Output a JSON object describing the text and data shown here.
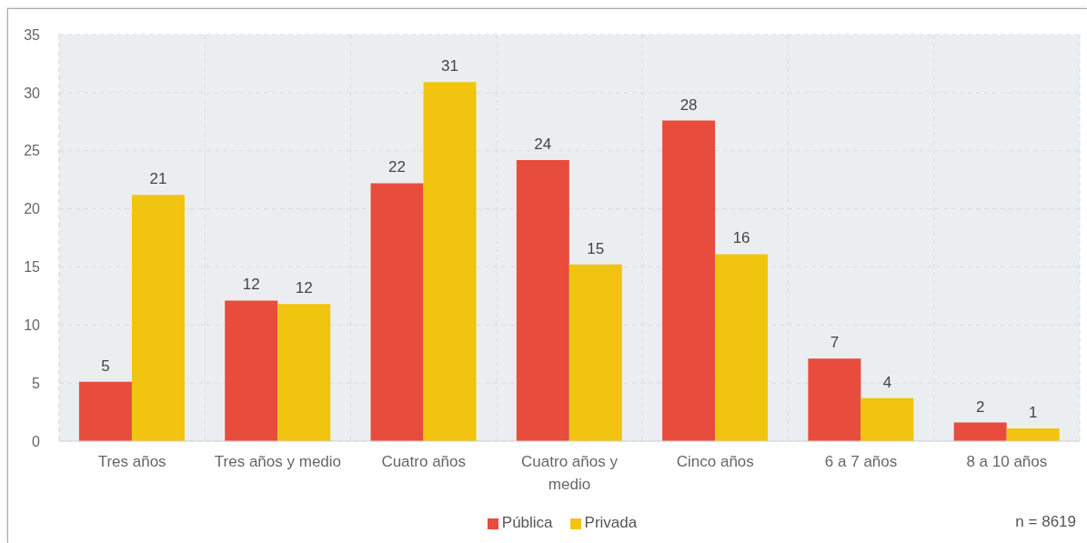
{
  "chart_data": {
    "type": "bar",
    "categories": [
      "Tres años",
      "Tres años y medio",
      "Cuatro años",
      "Cuatro años y medio",
      "Cinco años",
      "6 a 7 años",
      "8 a 10 años"
    ],
    "series": [
      {
        "name": "Pública",
        "color": "#e84c3d",
        "values": [
          5.1,
          12.1,
          22.2,
          24.2,
          27.6,
          7.1,
          1.6
        ],
        "value_labels": [
          "5",
          "12",
          "22",
          "24",
          "28",
          "7",
          "2"
        ]
      },
      {
        "name": "Privada",
        "color": "#f1c40f",
        "values": [
          21.2,
          11.8,
          30.9,
          15.2,
          16.1,
          3.7,
          1.1
        ],
        "value_labels": [
          "21",
          "12",
          "31",
          "15",
          "16",
          "4",
          "1"
        ]
      }
    ],
    "ylim": [
      0,
      35
    ],
    "yticks": [
      0,
      5,
      10,
      15,
      20,
      25,
      30,
      35
    ],
    "grid": true,
    "legend": "bottom",
    "annotations": [
      "n = 8619"
    ]
  }
}
